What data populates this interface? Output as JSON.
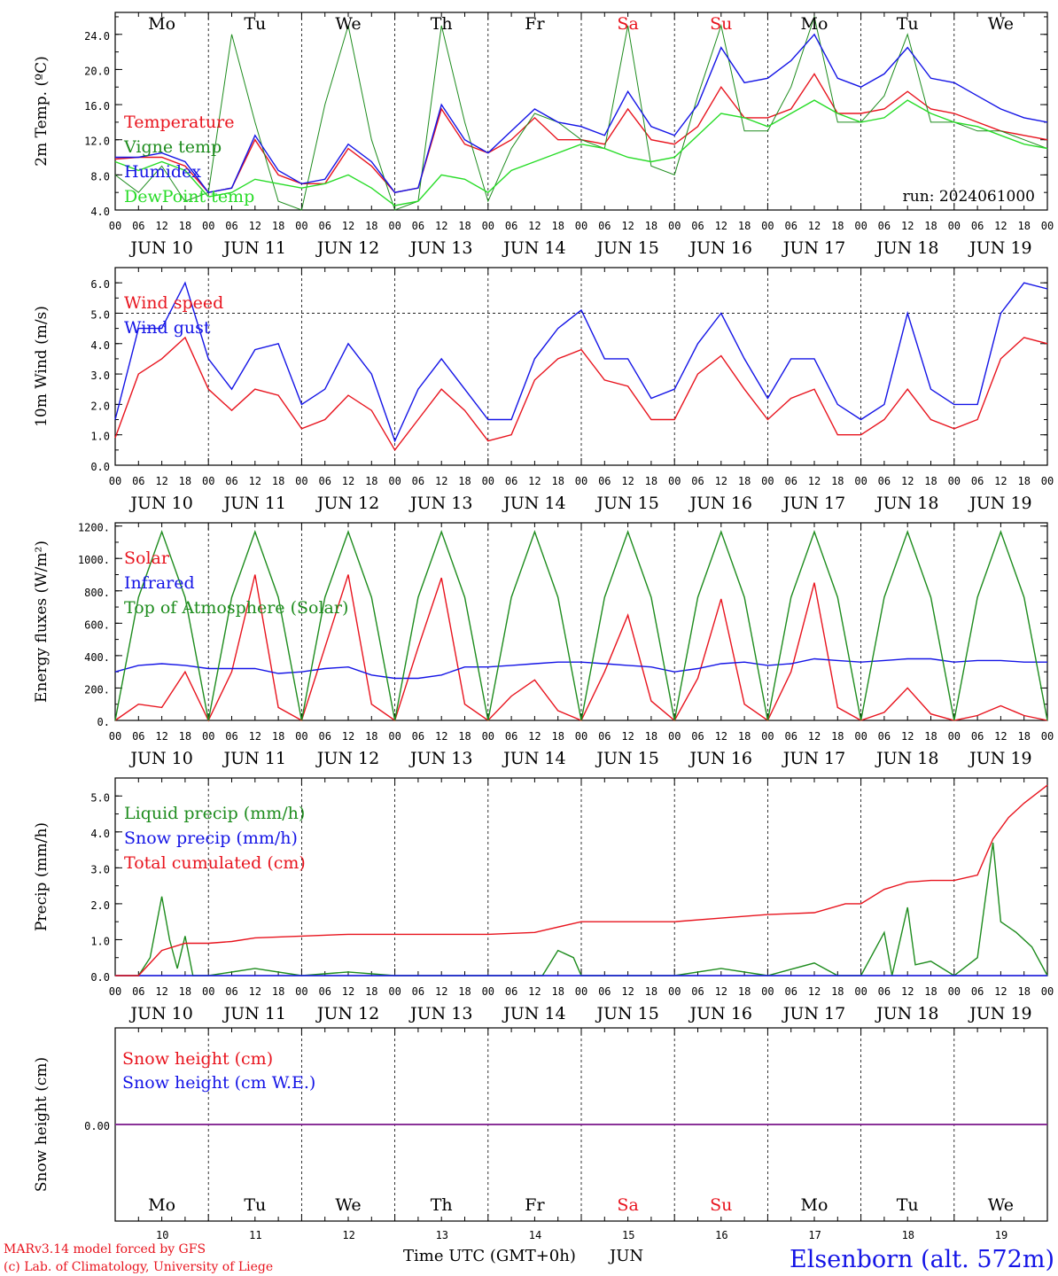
{
  "colors": {
    "red": "#e8141e",
    "green": "#1e8c1e",
    "blue": "#1414e6",
    "lightgreen": "#28dc28",
    "purple": "#8c288c",
    "weekend": "#e8141e",
    "station": "#1414e6"
  },
  "weekdays": [
    "Mo",
    "Tu",
    "We",
    "Th",
    "Fr",
    "Sa",
    "Su",
    "Mo",
    "Tu",
    "We"
  ],
  "weekend_flags": [
    false,
    false,
    false,
    false,
    false,
    true,
    true,
    false,
    false,
    false
  ],
  "day_labels": [
    "JUN 10",
    "JUN 11",
    "JUN 12",
    "JUN 13",
    "JUN 14",
    "JUN 15",
    "JUN 16",
    "JUN 17",
    "JUN 18",
    "JUN 19"
  ],
  "day_numbers": [
    "10",
    "11",
    "12",
    "13",
    "14",
    "15",
    "16",
    "17",
    "18",
    "19"
  ],
  "hour_ticks": [
    "00",
    "06",
    "12",
    "18"
  ],
  "footer": {
    "model": "MARv3.14 model forced by GFS",
    "copyright": "(c) Lab. of Climatology, University of Liege",
    "xlabel": "Time UTC (GMT+0h)",
    "month": "JUN",
    "station": "Elsenborn (alt. 572m)"
  },
  "chart_data": [
    {
      "type": "line",
      "ylabel": "2m Temp. (ºC)",
      "run_label": "run: 2024061000",
      "ylim": [
        4,
        26.5
      ],
      "yticks": [
        "4.0",
        "8.0",
        "12.0",
        "16.0",
        "20.0",
        "24.0"
      ],
      "ytick_values": [
        4,
        8,
        12,
        16,
        20,
        24
      ],
      "x_unit": "hours since JUN 10 00 UTC",
      "series": [
        {
          "name": "Temperature",
          "color": "red",
          "x": [
            0,
            6,
            12,
            18,
            24,
            30,
            36,
            42,
            48,
            54,
            60,
            66,
            72,
            78,
            84,
            90,
            96,
            102,
            108,
            114,
            120,
            126,
            132,
            138,
            144,
            150,
            156,
            162,
            168,
            174,
            180,
            186,
            192,
            198,
            204,
            210,
            216,
            222,
            228,
            234,
            240
          ],
          "values": [
            9.8,
            10,
            10,
            9,
            6,
            6.5,
            12,
            8,
            7,
            7,
            11,
            9,
            6,
            6.5,
            15.5,
            11.5,
            10.5,
            12,
            14.5,
            12,
            12,
            11.5,
            15.5,
            12,
            11.5,
            13.5,
            18,
            14.5,
            14.5,
            15.5,
            19.5,
            15,
            15,
            15.5,
            17.5,
            15.5,
            15,
            14,
            13,
            12.5,
            12
          ]
        },
        {
          "name": "Vigne temp",
          "color": "green",
          "x": [
            0,
            6,
            12,
            18,
            24,
            30,
            36,
            42,
            48,
            54,
            60,
            66,
            72,
            78,
            84,
            90,
            96,
            102,
            108,
            114,
            120,
            126,
            132,
            138,
            144,
            150,
            156,
            162,
            168,
            174,
            180,
            186,
            192,
            198,
            204,
            210,
            216,
            222,
            228,
            234,
            240
          ],
          "values": [
            8,
            6,
            9,
            5,
            6,
            24,
            14,
            5,
            4,
            16,
            25,
            12,
            4,
            5,
            25,
            14,
            5,
            11,
            15,
            14,
            12,
            11,
            25,
            9,
            8,
            17,
            25,
            13,
            13,
            18,
            26,
            14,
            14,
            17,
            24,
            14,
            14,
            13,
            13,
            12,
            11
          ]
        },
        {
          "name": "Humidex",
          "color": "blue",
          "x": [
            0,
            6,
            12,
            18,
            24,
            30,
            36,
            42,
            48,
            54,
            60,
            66,
            72,
            78,
            84,
            90,
            96,
            102,
            108,
            114,
            120,
            126,
            132,
            138,
            144,
            150,
            156,
            162,
            168,
            174,
            180,
            186,
            192,
            198,
            204,
            210,
            216,
            222,
            228,
            234,
            240
          ],
          "values": [
            10,
            10,
            10.5,
            9.5,
            6,
            6.5,
            12.5,
            8.5,
            7,
            7.5,
            11.5,
            9.5,
            6,
            6.5,
            16,
            12,
            10.5,
            13,
            15.5,
            14,
            13.5,
            12.5,
            17.5,
            13.5,
            12.5,
            16,
            22.5,
            18.5,
            19,
            21,
            24,
            19,
            18,
            19.5,
            22.5,
            19,
            18.5,
            17,
            15.5,
            14.5,
            14
          ]
        },
        {
          "name": "DewPoint temp",
          "color": "lightgreen",
          "x": [
            0,
            6,
            12,
            18,
            24,
            30,
            36,
            42,
            48,
            54,
            60,
            66,
            72,
            78,
            84,
            90,
            96,
            102,
            108,
            114,
            120,
            126,
            132,
            138,
            144,
            150,
            156,
            162,
            168,
            174,
            180,
            186,
            192,
            198,
            204,
            210,
            216,
            222,
            228,
            234,
            240
          ],
          "values": [
            9.5,
            8.5,
            9.5,
            8.5,
            5.5,
            6,
            7.5,
            7,
            6.5,
            7,
            8,
            6.5,
            4.5,
            5,
            8,
            7.5,
            6,
            8.5,
            9.5,
            10.5,
            11.5,
            11,
            10,
            9.5,
            10,
            12.5,
            15,
            14.5,
            13.5,
            15,
            16.5,
            15,
            14,
            14.5,
            16.5,
            15,
            14,
            13.5,
            12.5,
            11.5,
            11
          ]
        }
      ]
    },
    {
      "type": "line",
      "ylabel": "10m Wind (m/s)",
      "ylim": [
        0,
        6.5
      ],
      "yticks": [
        "0.0",
        "1.0",
        "2.0",
        "3.0",
        "4.0",
        "5.0",
        "6.0"
      ],
      "ytick_values": [
        0,
        1,
        2,
        3,
        4,
        5,
        6
      ],
      "dashed_line": 5,
      "series": [
        {
          "name": "Wind speed",
          "color": "red",
          "x": [
            0,
            6,
            12,
            18,
            24,
            30,
            36,
            42,
            48,
            54,
            60,
            66,
            72,
            78,
            84,
            90,
            96,
            102,
            108,
            114,
            120,
            126,
            132,
            138,
            144,
            150,
            156,
            162,
            168,
            174,
            180,
            186,
            192,
            198,
            204,
            210,
            216,
            222,
            228,
            234,
            240
          ],
          "values": [
            0.9,
            3,
            3.5,
            4.2,
            2.5,
            1.8,
            2.5,
            2.3,
            1.2,
            1.5,
            2.3,
            1.8,
            0.5,
            1.5,
            2.5,
            1.8,
            0.8,
            1,
            2.8,
            3.5,
            3.8,
            2.8,
            2.6,
            1.5,
            1.5,
            3,
            3.6,
            2.5,
            1.5,
            2.2,
            2.5,
            1,
            1,
            1.5,
            2.5,
            1.5,
            1.2,
            1.5,
            3.5,
            4.2,
            4
          ]
        },
        {
          "name": "Wind gust",
          "color": "blue",
          "x": [
            0,
            6,
            12,
            18,
            24,
            30,
            36,
            42,
            48,
            54,
            60,
            66,
            72,
            78,
            84,
            90,
            96,
            102,
            108,
            114,
            120,
            126,
            132,
            138,
            144,
            150,
            156,
            162,
            168,
            174,
            180,
            186,
            192,
            198,
            204,
            210,
            216,
            222,
            228,
            234,
            240
          ],
          "values": [
            1.5,
            4.5,
            4.5,
            6,
            3.5,
            2.5,
            3.8,
            4,
            2,
            2.5,
            4,
            3,
            0.8,
            2.5,
            3.5,
            2.5,
            1.5,
            1.5,
            3.5,
            4.5,
            5.1,
            3.5,
            3.5,
            2.2,
            2.5,
            4,
            5,
            3.5,
            2.2,
            3.5,
            3.5,
            2,
            1.5,
            2,
            5,
            2.5,
            2,
            2,
            5,
            6,
            5.8
          ]
        }
      ]
    },
    {
      "type": "line",
      "ylabel": "Energy fluxes (W/m²)",
      "ylim": [
        0,
        1220
      ],
      "yticks": [
        "0.",
        "200.",
        "400.",
        "600.",
        "800.",
        "1000.",
        "1200."
      ],
      "ytick_values": [
        0,
        200,
        400,
        600,
        800,
        1000,
        1200
      ],
      "series": [
        {
          "name": "Solar",
          "color": "red",
          "x": [
            0,
            6,
            12,
            18,
            24,
            30,
            36,
            42,
            48,
            54,
            60,
            66,
            72,
            78,
            84,
            90,
            96,
            102,
            108,
            114,
            120,
            126,
            132,
            138,
            144,
            150,
            156,
            162,
            168,
            174,
            180,
            186,
            192,
            198,
            204,
            210,
            216,
            222,
            228,
            234,
            240
          ],
          "values": [
            0,
            100,
            80,
            300,
            0,
            300,
            900,
            80,
            0,
            450,
            900,
            100,
            0,
            450,
            880,
            100,
            0,
            150,
            250,
            60,
            0,
            300,
            650,
            120,
            0,
            260,
            750,
            100,
            0,
            300,
            850,
            80,
            0,
            50,
            200,
            40,
            0,
            30,
            90,
            30,
            0
          ]
        },
        {
          "name": "Infrared",
          "color": "blue",
          "x": [
            0,
            6,
            12,
            18,
            24,
            30,
            36,
            42,
            48,
            54,
            60,
            66,
            72,
            78,
            84,
            90,
            96,
            102,
            108,
            114,
            120,
            126,
            132,
            138,
            144,
            150,
            156,
            162,
            168,
            174,
            180,
            186,
            192,
            198,
            204,
            210,
            216,
            222,
            228,
            234,
            240
          ],
          "values": [
            300,
            340,
            350,
            340,
            320,
            320,
            320,
            290,
            300,
            320,
            330,
            280,
            260,
            260,
            280,
            330,
            330,
            340,
            350,
            360,
            360,
            350,
            340,
            330,
            300,
            320,
            350,
            360,
            340,
            350,
            380,
            370,
            360,
            370,
            380,
            380,
            360,
            370,
            370,
            360,
            360
          ]
        },
        {
          "name": "Top of Atmosphere (Solar)",
          "color": "green",
          "x": [
            0,
            6,
            12,
            18,
            24,
            30,
            36,
            42,
            48,
            54,
            60,
            66,
            72,
            78,
            84,
            90,
            96,
            102,
            108,
            114,
            120,
            126,
            132,
            138,
            144,
            150,
            156,
            162,
            168,
            174,
            180,
            186,
            192,
            198,
            204,
            210,
            216,
            222,
            228,
            234,
            240
          ],
          "values": [
            0,
            760,
            1165,
            760,
            0,
            760,
            1165,
            760,
            0,
            760,
            1165,
            760,
            0,
            760,
            1165,
            760,
            0,
            760,
            1165,
            760,
            0,
            760,
            1165,
            760,
            0,
            760,
            1165,
            760,
            0,
            760,
            1165,
            760,
            0,
            760,
            1165,
            760,
            0,
            760,
            1165,
            760,
            0
          ]
        }
      ]
    },
    {
      "type": "line",
      "ylabel": "Precip (mm/h)",
      "ylim": [
        0,
        5.5
      ],
      "yticks": [
        "0.0",
        "1.0",
        "2.0",
        "3.0",
        "4.0",
        "5.0"
      ],
      "ytick_values": [
        0,
        1,
        2,
        3,
        4,
        5
      ],
      "series": [
        {
          "name": "Liquid precip (mm/h)",
          "color": "green",
          "x": [
            0,
            6,
            9,
            12,
            14,
            16,
            18,
            20,
            24,
            36,
            48,
            60,
            72,
            84,
            96,
            110,
            114,
            118,
            120,
            132,
            144,
            156,
            168,
            180,
            186,
            192,
            198,
            200,
            204,
            206,
            210,
            216,
            222,
            226,
            228,
            232,
            236,
            240
          ],
          "values": [
            0,
            0,
            0.5,
            2.2,
            1,
            0.2,
            1.1,
            0,
            0,
            0.2,
            0,
            0.1,
            0,
            0,
            0,
            0,
            0.7,
            0.5,
            0,
            0,
            0,
            0.2,
            0,
            0.35,
            0,
            0,
            1.2,
            0,
            1.9,
            0.3,
            0.4,
            0,
            0.5,
            3.7,
            1.5,
            1.2,
            0.8,
            0
          ]
        },
        {
          "name": "Snow precip (mm/h)",
          "color": "blue",
          "x": [
            0,
            240
          ],
          "values": [
            0,
            0
          ]
        },
        {
          "name": "Total cumulated (cm)",
          "color": "red",
          "x": [
            0,
            6,
            12,
            18,
            24,
            30,
            36,
            48,
            60,
            72,
            84,
            96,
            108,
            116,
            120,
            132,
            144,
            156,
            168,
            180,
            188,
            192,
            198,
            204,
            210,
            216,
            222,
            226,
            230,
            234,
            240
          ],
          "values": [
            0,
            0,
            0.7,
            0.9,
            0.9,
            0.95,
            1.05,
            1.1,
            1.15,
            1.15,
            1.15,
            1.15,
            1.2,
            1.4,
            1.5,
            1.5,
            1.5,
            1.6,
            1.7,
            1.75,
            2,
            2,
            2.4,
            2.6,
            2.65,
            2.65,
            2.8,
            3.8,
            4.4,
            4.8,
            5.3
          ]
        }
      ]
    },
    {
      "type": "line",
      "ylabel": "Snow height (cm)",
      "ylim": [
        -1,
        1
      ],
      "yticks": [
        "0.00"
      ],
      "ytick_values": [
        0
      ],
      "series": [
        {
          "name": "Snow height (cm)",
          "color": "red",
          "x": [
            0,
            240
          ],
          "values": [
            0,
            0
          ]
        },
        {
          "name": "Snow height (cm W.E.)",
          "color": "blue",
          "x": [
            0,
            240
          ],
          "values": [
            0,
            0
          ]
        }
      ]
    }
  ]
}
